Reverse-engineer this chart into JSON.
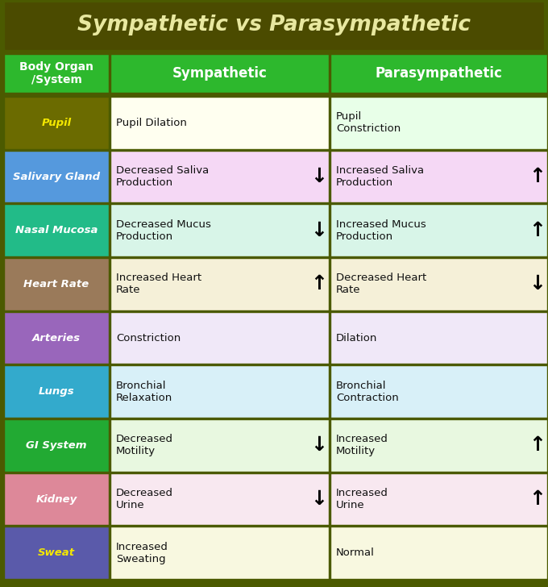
{
  "title": "Sympathetic vs Parasympathetic",
  "title_bg": "#4b4b00",
  "title_color": "#e8e8a0",
  "header_bg": "#2db82d",
  "header_color": "white",
  "col_headers": [
    "Body Organ\n/System",
    "Sympathetic",
    "Parasympathetic"
  ],
  "outer_bg": "#4b5a00",
  "rows": [
    {
      "organ": "Pupil",
      "organ_bg": "#6b6b00",
      "organ_color": "#f5e800",
      "symp_text": "Pupil Dilation",
      "symp_bg": "#fffff0",
      "para_text": "Pupil\nConstriction",
      "para_bg": "#e8ffe8",
      "symp_arrow": "",
      "para_arrow": ""
    },
    {
      "organ": "Salivary Gland",
      "organ_bg": "#5599dd",
      "organ_color": "white",
      "symp_text": "Decreased Saliva\nProduction",
      "symp_bg": "#f5d8f5",
      "para_text": "Increased Saliva\nProduction",
      "para_bg": "#f5d8f5",
      "symp_arrow": "↓",
      "para_arrow": "↑"
    },
    {
      "organ": "Nasal Mucosa",
      "organ_bg": "#22bb88",
      "organ_color": "white",
      "symp_text": "Decreased Mucus\nProduction",
      "symp_bg": "#d8f5e8",
      "para_text": "Increased Mucus\nProduction",
      "para_bg": "#d8f5e8",
      "symp_arrow": "↓",
      "para_arrow": "↑"
    },
    {
      "organ": "Heart Rate",
      "organ_bg": "#9a7a5a",
      "organ_color": "white",
      "symp_text": "Increased Heart\nRate",
      "symp_bg": "#f5f0d8",
      "para_text": "Decreased Heart\nRate",
      "para_bg": "#f5f0d8",
      "symp_arrow": "↑",
      "para_arrow": "↓"
    },
    {
      "organ": "Arteries",
      "organ_bg": "#9966bb",
      "organ_color": "white",
      "symp_text": "Constriction",
      "symp_bg": "#f0e8f8",
      "para_text": "Dilation",
      "para_bg": "#f0e8f8",
      "symp_arrow": "",
      "para_arrow": ""
    },
    {
      "organ": "Lungs",
      "organ_bg": "#33aacc",
      "organ_color": "white",
      "symp_text": "Bronchial\nRelaxation",
      "symp_bg": "#d8f0f8",
      "para_text": "Bronchial\nContraction",
      "para_bg": "#d8f0f8",
      "symp_arrow": "",
      "para_arrow": ""
    },
    {
      "organ": "GI System",
      "organ_bg": "#22aa33",
      "organ_color": "white",
      "symp_text": "Decreased\nMotility",
      "symp_bg": "#e8f8e0",
      "para_text": "Increased\nMotility",
      "para_bg": "#e8f8e0",
      "symp_arrow": "↓",
      "para_arrow": "↑"
    },
    {
      "organ": "Kidney",
      "organ_bg": "#dd8899",
      "organ_color": "white",
      "symp_text": "Decreased\nUrine",
      "symp_bg": "#f8e8f0",
      "para_text": "Increased\nUrine",
      "para_bg": "#f8e8f0",
      "symp_arrow": "↓",
      "para_arrow": "↑"
    },
    {
      "organ": "Sweat",
      "organ_bg": "#5a5aaa",
      "organ_color": "#f5e800",
      "symp_text": "Increased\nSweating",
      "symp_bg": "#f8f8e0",
      "para_text": "Normal",
      "para_bg": "#f8f8e0",
      "symp_arrow": "",
      "para_arrow": ""
    }
  ],
  "border_color": "#3a5200",
  "text_color": "#111111",
  "icon_symp": [
    "👁",
    "👄",
    "👃",
    "❤",
    "🫀",
    "🫑",
    "🫀",
    "🧪",
    "🧑"
  ],
  "icon_para": [
    "👀",
    "👄",
    "👃",
    "❤",
    "🫀",
    "🫑",
    "🫀",
    "🧪",
    "🆒"
  ]
}
